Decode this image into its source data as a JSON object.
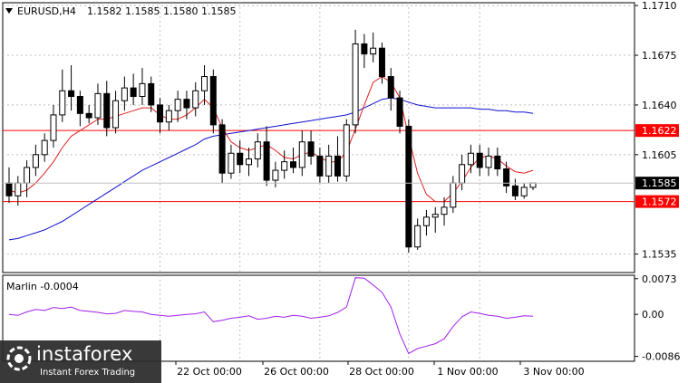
{
  "chart_data": {
    "type": "candlestick",
    "header": {
      "symbol": "EURUSD,H4",
      "ohlc": "1.1582 1.1585 1.1580 1.1585"
    },
    "price_axis": {
      "ticks": [
        "1.1710",
        "1.1675",
        "1.1640",
        "1.1605",
        "1.1535"
      ],
      "ylim": [
        1.1522,
        1.1712
      ]
    },
    "time_axis": {
      "ticks": [
        "22 Oct 00:00",
        "26 Oct 00:00",
        "28 Oct 00:00",
        "1 Nov 00:00",
        "3 Nov 00:00"
      ]
    },
    "current_price": "1.1585",
    "levels": [
      {
        "label": "1.1622",
        "value": 1.1622,
        "color": "#ff0000"
      },
      {
        "label": "1.1572",
        "value": 1.1572,
        "color": "#ff0000"
      }
    ],
    "candles": [
      [
        1.1585,
        1.1596,
        1.1571,
        1.1576
      ],
      [
        1.1576,
        1.159,
        1.1569,
        1.1585
      ],
      [
        1.1585,
        1.1601,
        1.1575,
        1.1596
      ],
      [
        1.1596,
        1.1612,
        1.159,
        1.1605
      ],
      [
        1.1605,
        1.162,
        1.16,
        1.1615
      ],
      [
        1.1615,
        1.164,
        1.161,
        1.1633
      ],
      [
        1.1633,
        1.1665,
        1.1628,
        1.165
      ],
      [
        1.165,
        1.1668,
        1.1636,
        1.1646
      ],
      [
        1.1646,
        1.165,
        1.1625,
        1.1634
      ],
      [
        1.1634,
        1.164,
        1.1627,
        1.1631
      ],
      [
        1.1631,
        1.1655,
        1.1626,
        1.1648
      ],
      [
        1.1648,
        1.1657,
        1.1618,
        1.1624
      ],
      [
        1.1624,
        1.165,
        1.162,
        1.1643
      ],
      [
        1.1643,
        1.166,
        1.1636,
        1.1652
      ],
      [
        1.1652,
        1.1662,
        1.164,
        1.1646
      ],
      [
        1.1646,
        1.1666,
        1.164,
        1.1655
      ],
      [
        1.1655,
        1.166,
        1.1635,
        1.164
      ],
      [
        1.164,
        1.1645,
        1.162,
        1.1628
      ],
      [
        1.1628,
        1.164,
        1.1622,
        1.1636
      ],
      [
        1.1636,
        1.165,
        1.1628,
        1.1644
      ],
      [
        1.1644,
        1.165,
        1.163,
        1.1638
      ],
      [
        1.1638,
        1.1656,
        1.1632,
        1.165
      ],
      [
        1.165,
        1.1668,
        1.164,
        1.166
      ],
      [
        1.166,
        1.1665,
        1.162,
        1.1626
      ],
      [
        1.1626,
        1.163,
        1.1585,
        1.1592
      ],
      [
        1.1592,
        1.1612,
        1.1588,
        1.1606
      ],
      [
        1.1606,
        1.1615,
        1.1592,
        1.1598
      ],
      [
        1.1598,
        1.161,
        1.159,
        1.1602
      ],
      [
        1.1602,
        1.162,
        1.1596,
        1.1614
      ],
      [
        1.1614,
        1.1625,
        1.1583,
        1.1587
      ],
      [
        1.1587,
        1.16,
        1.1582,
        1.1594
      ],
      [
        1.1594,
        1.1608,
        1.1588,
        1.16
      ],
      [
        1.16,
        1.161,
        1.1592,
        1.1596
      ],
      [
        1.1596,
        1.1622,
        1.159,
        1.1614
      ],
      [
        1.1614,
        1.1622,
        1.1598,
        1.1604
      ],
      [
        1.1604,
        1.161,
        1.1585,
        1.159
      ],
      [
        1.159,
        1.1612,
        1.1585,
        1.1604
      ],
      [
        1.1604,
        1.1618,
        1.1586,
        1.159
      ],
      [
        1.159,
        1.163,
        1.1586,
        1.1626
      ],
      [
        1.1626,
        1.1693,
        1.162,
        1.1683
      ],
      [
        1.1683,
        1.169,
        1.1666,
        1.1676
      ],
      [
        1.1676,
        1.1691,
        1.167,
        1.168
      ],
      [
        1.168,
        1.1684,
        1.1655,
        1.166
      ],
      [
        1.166,
        1.1666,
        1.1636,
        1.1645
      ],
      [
        1.1645,
        1.165,
        1.162,
        1.1625
      ],
      [
        1.1625,
        1.163,
        1.1536,
        1.154
      ],
      [
        1.154,
        1.156,
        1.1538,
        1.1555
      ],
      [
        1.1555,
        1.1566,
        1.1548,
        1.1561
      ],
      [
        1.1561,
        1.1568,
        1.155,
        1.1563
      ],
      [
        1.1563,
        1.1575,
        1.1555,
        1.1568
      ],
      [
        1.1568,
        1.159,
        1.1564,
        1.1585
      ],
      [
        1.1585,
        1.1605,
        1.158,
        1.1598
      ],
      [
        1.1598,
        1.1612,
        1.1592,
        1.1606
      ],
      [
        1.1606,
        1.1612,
        1.159,
        1.1596
      ],
      [
        1.1596,
        1.161,
        1.159,
        1.1604
      ],
      [
        1.1604,
        1.161,
        1.159,
        1.1595
      ],
      [
        1.1595,
        1.16,
        1.1578,
        1.1583
      ],
      [
        1.1583,
        1.1588,
        1.1573,
        1.1576
      ],
      [
        1.1576,
        1.1585,
        1.1574,
        1.1582
      ],
      [
        1.1582,
        1.1585,
        1.158,
        1.1585
      ]
    ],
    "ma_red": [
      1.158,
      1.1578,
      1.158,
      1.1585,
      1.1592,
      1.16,
      1.161,
      1.1618,
      1.1622,
      1.1626,
      1.163,
      1.163,
      1.1632,
      1.1634,
      1.1636,
      1.1638,
      1.1638,
      1.1633,
      1.163,
      1.163,
      1.1633,
      1.1638,
      1.1644,
      1.1638,
      1.1624,
      1.1614,
      1.161,
      1.1608,
      1.161,
      1.1612,
      1.1608,
      1.1603,
      1.1602,
      1.1605,
      1.1607,
      1.1603,
      1.16,
      1.16,
      1.1607,
      1.1623,
      1.164,
      1.1656,
      1.166,
      1.1656,
      1.1645,
      1.1618,
      1.1592,
      1.1577,
      1.1572,
      1.1572,
      1.1578,
      1.1586,
      1.1596,
      1.1603,
      1.1604,
      1.1602,
      1.1597,
      1.1593,
      1.1592,
      1.1594
    ],
    "ma_blue": [
      1.1545,
      1.1546,
      1.1548,
      1.155,
      1.1552,
      1.1555,
      1.1558,
      1.1562,
      1.1566,
      1.157,
      1.1574,
      1.1578,
      1.1582,
      1.1586,
      1.159,
      1.1594,
      1.1597,
      1.16,
      1.1603,
      1.1606,
      1.1609,
      1.1612,
      1.1616,
      1.1618,
      1.1619,
      1.162,
      1.1621,
      1.1622,
      1.1623,
      1.1624,
      1.1625,
      1.1626,
      1.1627,
      1.1628,
      1.1629,
      1.163,
      1.1631,
      1.1632,
      1.1633,
      1.1635,
      1.1638,
      1.1641,
      1.1644,
      1.1645,
      1.1644,
      1.1642,
      1.164,
      1.1639,
      1.1638,
      1.1638,
      1.1638,
      1.1638,
      1.1638,
      1.1637,
      1.1637,
      1.1636,
      1.1636,
      1.1635,
      1.1635,
      1.1634
    ],
    "indicator": {
      "label": "Marlin -0.0004",
      "ticks": [
        "0.0073",
        "0.00",
        "-0.0086"
      ],
      "ylim": [
        -0.0096,
        0.008
      ],
      "values": [
        0.0,
        -0.0002,
        0.0005,
        0.001,
        0.0008,
        0.0014,
        0.0012,
        0.0015,
        0.0008,
        0.0006,
        0.0004,
        0.0001,
        0.0002,
        0.0008,
        0.0006,
        0.0005,
        0.0,
        -0.0002,
        -0.0004,
        -0.0002,
        0.0,
        0.0001,
        0.0005,
        -0.0015,
        -0.0012,
        -0.0008,
        -0.0006,
        -0.0003,
        -0.001,
        -0.0008,
        -0.0004,
        -0.0006,
        -0.0002,
        -0.0004,
        -0.0008,
        -0.0006,
        -0.0003,
        0.0004,
        0.0015,
        0.0075,
        0.0074,
        0.006,
        0.0045,
        0.0015,
        -0.004,
        -0.008,
        -0.007,
        -0.0065,
        -0.006,
        -0.005,
        -0.0025,
        -0.0005,
        0.0005,
        0.0002,
        -0.0002,
        -0.0004,
        -0.0008,
        -0.0006,
        -0.0003,
        -0.0004
      ],
      "color": "#a020f0"
    }
  },
  "watermark": {
    "name": "instaforex",
    "tagline": "Instant Forex Trading"
  }
}
